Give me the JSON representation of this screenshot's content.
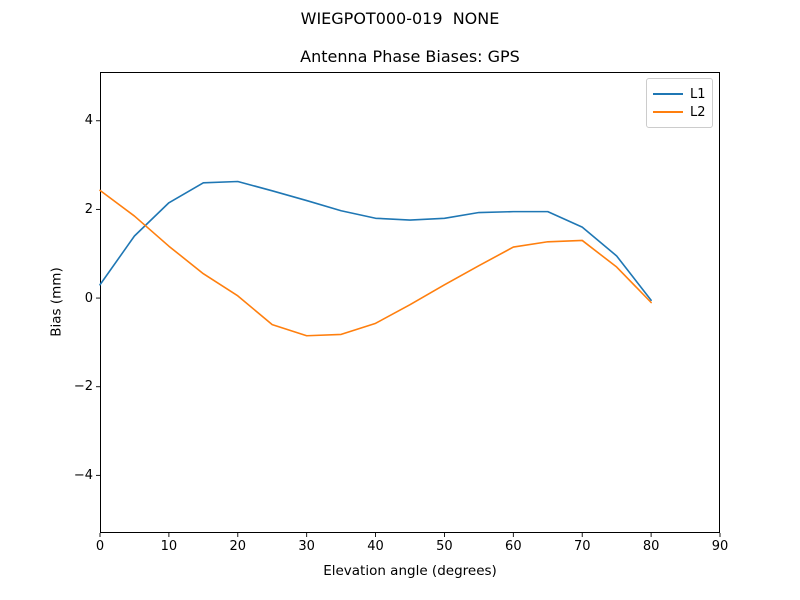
{
  "chart_data": {
    "type": "line",
    "suptitle": "WIEGPOT000-019  NONE",
    "title": "Antenna Phase Biases: GPS",
    "xlabel": "Elevation angle (degrees)",
    "ylabel": "Bias (mm)",
    "xlim": [
      0,
      90
    ],
    "ylim": [
      -5.3,
      5.1
    ],
    "xticks": [
      0,
      10,
      20,
      30,
      40,
      50,
      60,
      70,
      80,
      90
    ],
    "xticklabels": [
      "0",
      "10",
      "20",
      "30",
      "40",
      "50",
      "60",
      "70",
      "80",
      "90"
    ],
    "yticks": [
      -4,
      -2,
      0,
      2,
      4
    ],
    "yticklabels": [
      "−4",
      "−2",
      "0",
      "2",
      "4"
    ],
    "grid": false,
    "legend_position": "upper right",
    "x": [
      0,
      5,
      10,
      15,
      20,
      25,
      30,
      35,
      40,
      45,
      50,
      55,
      60,
      65,
      70,
      75,
      80
    ],
    "series": [
      {
        "name": "L1",
        "color": "#1f77b4",
        "values": [
          0.3,
          1.4,
          2.15,
          2.6,
          2.63,
          2.42,
          2.2,
          1.97,
          1.8,
          1.76,
          1.8,
          1.93,
          1.95,
          1.95,
          1.6,
          0.95,
          -0.05
        ]
      },
      {
        "name": "L2",
        "color": "#ff7f0e",
        "values": [
          2.43,
          1.85,
          1.17,
          0.55,
          0.05,
          -0.6,
          -0.85,
          -0.82,
          -0.57,
          -0.15,
          0.3,
          0.73,
          1.15,
          1.27,
          1.3,
          0.7,
          -0.1
        ]
      }
    ]
  }
}
